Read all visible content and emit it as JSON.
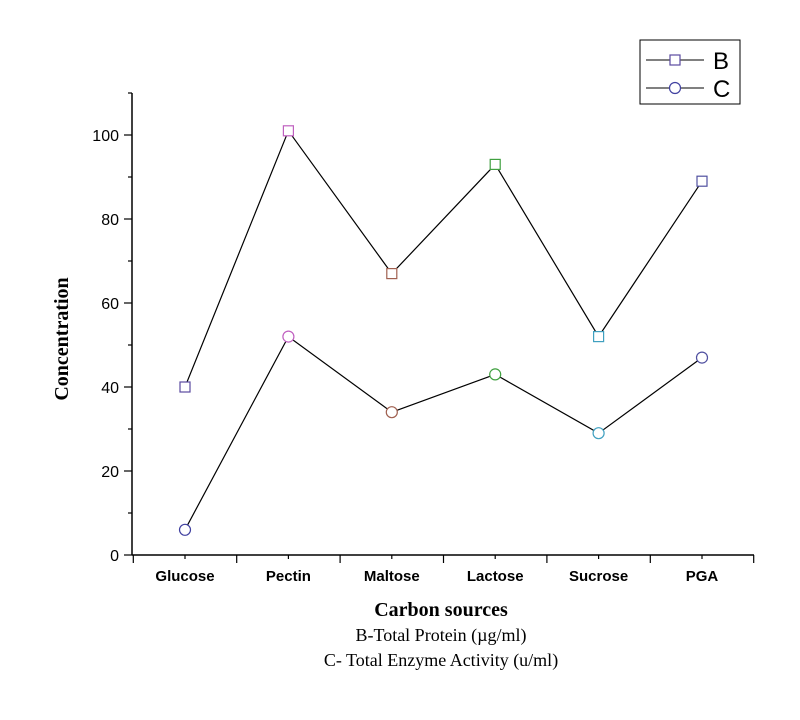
{
  "chart_data": {
    "type": "line",
    "categories": [
      "Glucose",
      "Pectin",
      "Maltose",
      "Lactose",
      "Sucrose",
      "PGA"
    ],
    "series": [
      {
        "name": "B",
        "marker": "square",
        "values": [
          40,
          101,
          67,
          93,
          52,
          89
        ],
        "marker_colors": [
          "#5b4aa0",
          "#c060c0",
          "#a06050",
          "#40a040",
          "#40a0c0",
          "#5050a0"
        ]
      },
      {
        "name": "C",
        "marker": "circle",
        "values": [
          6,
          52,
          34,
          43,
          29,
          47
        ],
        "marker_colors": [
          "#4040a0",
          "#c060c0",
          "#a06050",
          "#40a040",
          "#40a0c0",
          "#5050a0"
        ]
      }
    ],
    "line_color": "#000000",
    "xlabel": "Carbon sources",
    "ylabel": "Concentration",
    "ylim": [
      0,
      110
    ],
    "yticks": [
      0,
      20,
      40,
      60,
      80,
      100
    ],
    "grid": false,
    "legend_position": "top-right",
    "notes": [
      "B-Total Protein (µg/ml)",
      "C- Total Enzyme Activity (u/ml)"
    ]
  }
}
